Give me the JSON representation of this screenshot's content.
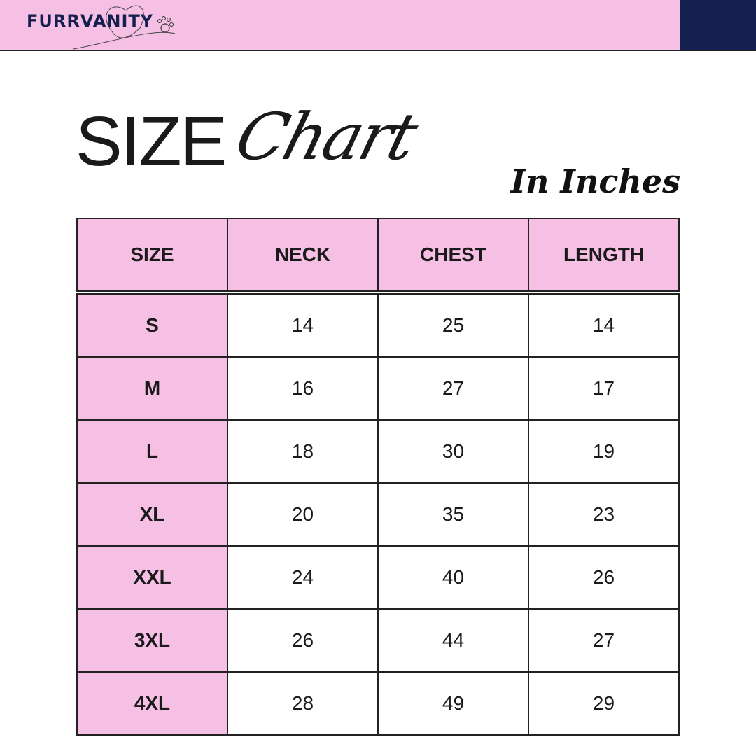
{
  "brand": {
    "name": "FURRVANITY",
    "colors": {
      "pink": "#f6bfe4",
      "navy": "#162050"
    }
  },
  "title": {
    "part1": "SIZE",
    "part2": "Chart",
    "units": "In Inches"
  },
  "table": {
    "headers": [
      "SIZE",
      "NECK",
      "CHEST",
      "LENGTH"
    ],
    "rows": [
      [
        "S",
        "14",
        "25",
        "14"
      ],
      [
        "M",
        "16",
        "27",
        "17"
      ],
      [
        "L",
        "18",
        "30",
        "19"
      ],
      [
        "XL",
        "20",
        "35",
        "23"
      ],
      [
        "XXL",
        "24",
        "40",
        "26"
      ],
      [
        "3XL",
        "26",
        "44",
        "27"
      ],
      [
        "4XL",
        "28",
        "49",
        "29"
      ]
    ]
  }
}
